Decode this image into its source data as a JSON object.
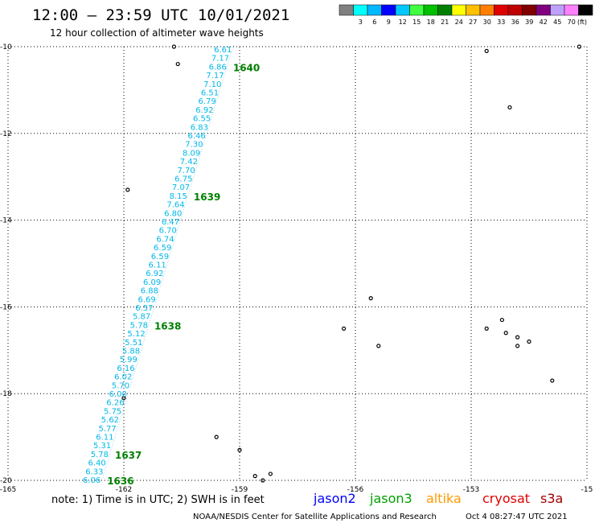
{
  "header": {
    "title": "12:00 – 23:59 UTC 10/01/2021",
    "subtitle": "12 hour collection of altimeter wave heights"
  },
  "legend": {
    "colors": [
      "#808080",
      "#00ffff",
      "#00b8ff",
      "#0000ff",
      "#00c8ff",
      "#40ff40",
      "#00c000",
      "#008000",
      "#ffff00",
      "#ffc000",
      "#ff8000",
      "#e00000",
      "#c00000",
      "#800000",
      "#800080",
      "#c0a0ff",
      "#ff80ff",
      "#000000"
    ],
    "labels": [
      "3",
      "6",
      "9",
      "12",
      "15",
      "18",
      "21",
      "24",
      "27",
      "30",
      "33",
      "36",
      "39",
      "42",
      "45",
      "70"
    ],
    "unit": "(ft)"
  },
  "chart_data": {
    "type": "map-track",
    "x_ticks": [
      "-165",
      "-162",
      "-159",
      "-156",
      "-153",
      "-15"
    ],
    "y_ticks": [
      "-10",
      "-12",
      "-14",
      "-16",
      "-18",
      "-20"
    ],
    "xlim": [
      -165,
      -150
    ],
    "ylim": [
      -20,
      -10
    ],
    "grid": true,
    "track_start": [
      -159.2,
      -10.0
    ],
    "track_end": [
      -162.6,
      -20.0
    ],
    "swh_color": "#00b8e8",
    "pass_color": "#008000",
    "swh_values": [
      "6.61",
      "7.17",
      "6.86",
      "7.17",
      "7.10",
      "6.51",
      "6.79",
      "6.92",
      "6.55",
      "6.83",
      "6.46",
      "7.30",
      "8.09",
      "7.42",
      "7.70",
      "6.75",
      "7.07",
      "8.15",
      "7.64",
      "6.80",
      "6.47",
      "6.70",
      "6.74",
      "6.59",
      "6.59",
      "6.11",
      "6.92",
      "6.09",
      "6.88",
      "6.69",
      "6.57",
      "5.87",
      "5.78",
      "5.12",
      "5.51",
      "5.88",
      "5.99",
      "6.16",
      "6.02",
      "5.70",
      "6.00",
      "6.26",
      "5.75",
      "5.62",
      "5.77",
      "6.11",
      "5.31",
      "5.78",
      "6.40",
      "6.33",
      "6.06"
    ],
    "pass_labels": [
      {
        "label": "1640",
        "index": 2
      },
      {
        "label": "1639",
        "index": 17
      },
      {
        "label": "1638",
        "index": 32
      },
      {
        "label": "1637",
        "index": 47
      },
      {
        "label": "1636",
        "index": 50
      }
    ],
    "islands": [
      [
        -160.7,
        -10.0
      ],
      [
        -160.6,
        -10.4
      ],
      [
        -161.9,
        -13.3
      ],
      [
        -162.0,
        -18.1
      ],
      [
        -159.6,
        -19.0
      ],
      [
        -159.0,
        -19.3
      ],
      [
        -158.6,
        -19.9
      ],
      [
        -158.4,
        -20.0
      ],
      [
        -158.2,
        -19.85
      ],
      [
        -156.3,
        -16.5
      ],
      [
        -155.6,
        -15.8
      ],
      [
        -155.4,
        -16.9
      ],
      [
        -152.6,
        -10.1
      ],
      [
        -152.0,
        -11.4
      ],
      [
        -152.6,
        -16.5
      ],
      [
        -152.2,
        -16.3
      ],
      [
        -152.1,
        -16.6
      ],
      [
        -151.8,
        -16.7
      ],
      [
        -151.8,
        -16.9
      ],
      [
        -151.5,
        -16.8
      ],
      [
        -150.9,
        -17.7
      ],
      [
        -150.2,
        -10.0
      ]
    ]
  },
  "footer": {
    "note": "note: 1) Time is in UTC; 2) SWH is in feet",
    "satellites": [
      {
        "name": "jason2",
        "color": "#0000ff"
      },
      {
        "name": "jason3",
        "color": "#00a000"
      },
      {
        "name": "altika",
        "color": "#ff9900"
      },
      {
        "name": "cryosat",
        "color": "#e00000"
      },
      {
        "name": "s3a",
        "color": "#a00000"
      }
    ],
    "credit": "NOAA/NESDIS Center for Satellite Applications and Research",
    "timestamp": "Oct  4 08:27:47 UTC 2021"
  }
}
